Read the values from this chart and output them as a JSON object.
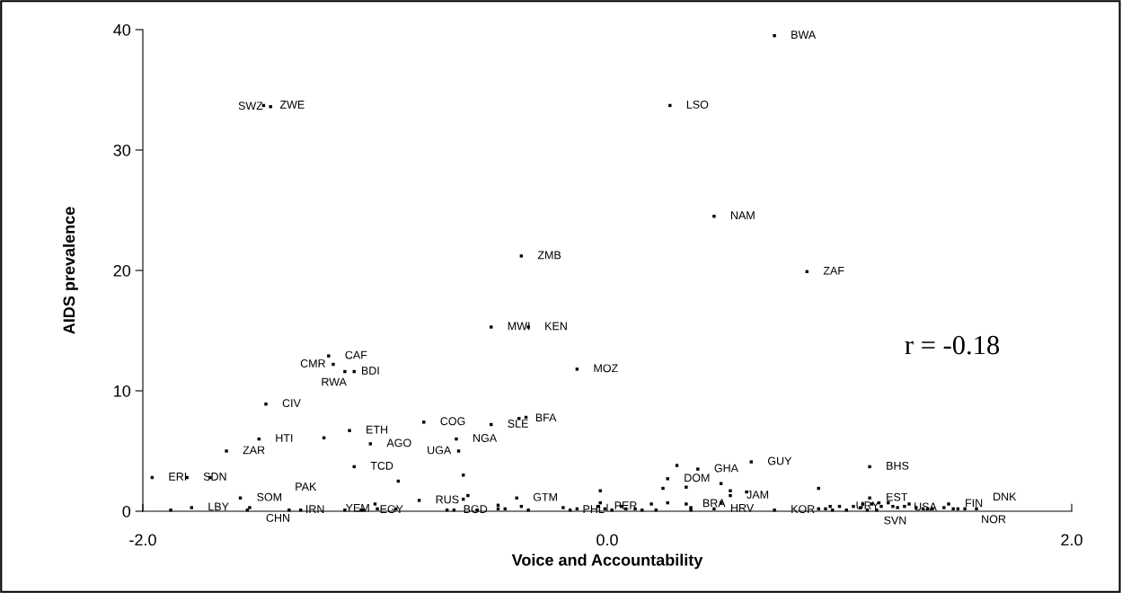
{
  "chart_data": {
    "type": "scatter",
    "xlabel": "Voice and Accountability",
    "ylabel": "AIDS prevalence",
    "xlim": [
      -2,
      2
    ],
    "xticks": [
      {
        "value": -2,
        "label": "-2.0"
      },
      {
        "value": 0,
        "label": "0.0"
      },
      {
        "value": 2,
        "label": "2.0"
      }
    ],
    "ylim": [
      0,
      40
    ],
    "yticks": [
      0,
      10,
      20,
      30,
      40
    ],
    "grid": false,
    "legend": false,
    "marker": "square",
    "series": [
      {
        "color": "#000000",
        "x": [
          0.72,
          0.27,
          0.46,
          0.86,
          -0.37,
          -0.5,
          -0.34,
          -0.13,
          -1.48,
          -1.45,
          -1.2,
          -1.18,
          -1.13,
          -1.09,
          -1.47,
          -1.5,
          -1.64,
          -1.96,
          -1.81,
          -1.58,
          -1.79,
          -1.54,
          -1.37,
          -1.32,
          -1.11,
          -1.02,
          -1.09,
          -0.79,
          -0.65,
          -0.64,
          -0.81,
          -1.05,
          -0.99,
          -0.69,
          -0.5,
          -0.38,
          -0.39,
          -0.04,
          0.02,
          0.26,
          0.39,
          0.34,
          0.53,
          0.46,
          0.62,
          0.72,
          1.13,
          1.13,
          1.0,
          1.12,
          1.25,
          1.47,
          1.54,
          1.59,
          -1.71,
          -1.22,
          -0.9,
          -0.62,
          -0.62,
          -0.6,
          -0.35,
          -1.88,
          -1.55,
          -1.13,
          -1.06,
          -0.91,
          -0.66,
          -0.56,
          -0.47,
          -0.47,
          -1.0,
          -0.44,
          -0.37,
          -0.34,
          -0.19,
          -0.16,
          -0.13,
          -0.03,
          -0.03,
          -0.01,
          0.06,
          0.08,
          0.12,
          0.15,
          0.19,
          0.21,
          0.24,
          0.26,
          0.3,
          0.34,
          0.36,
          0.36,
          0.49,
          0.49,
          0.53,
          0.6,
          0.91,
          0.91,
          0.94,
          0.96,
          0.97,
          1.03,
          1.06,
          1.09,
          1.1,
          1.14,
          1.16,
          1.17,
          1.18,
          1.21,
          1.23,
          1.28,
          1.3,
          1.33,
          1.36,
          1.38,
          1.4,
          1.45,
          1.49,
          1.51
        ],
        "values": [
          39.5,
          33.7,
          24.5,
          19.9,
          21.2,
          15.3,
          15.3,
          11.8,
          33.7,
          33.6,
          12.9,
          12.2,
          11.6,
          11.6,
          8.9,
          6.0,
          5.0,
          2.8,
          2.8,
          1.1,
          0.3,
          0.3,
          0.1,
          0.1,
          6.7,
          5.6,
          3.7,
          7.4,
          6.0,
          5.0,
          0.9,
          0.1,
          0.2,
          0.1,
          7.2,
          7.7,
          1.1,
          0.4,
          0.1,
          2.7,
          3.5,
          0.6,
          1.3,
          0.2,
          4.1,
          0.1,
          3.7,
          1.1,
          0.4,
          0.1,
          0.3,
          0.6,
          0.2,
          0.2,
          2.8,
          6.1,
          2.5,
          3.0,
          1.0,
          1.3,
          7.8,
          0.1,
          0.1,
          0.1,
          0.1,
          0.2,
          0.1,
          0.1,
          0.5,
          0.2,
          0.6,
          0.2,
          0.4,
          0.1,
          0.3,
          0.1,
          0.2,
          0.7,
          1.7,
          0.2,
          0.4,
          0.2,
          0.2,
          0.1,
          0.6,
          0.1,
          1.9,
          0.7,
          3.8,
          2.0,
          0.3,
          0.1,
          2.3,
          0.7,
          1.7,
          1.6,
          1.9,
          0.2,
          0.2,
          0.4,
          0.1,
          0.1,
          0.4,
          0.3,
          0.6,
          0.6,
          0.1,
          0.7,
          0.4,
          0.7,
          0.4,
          0.4,
          0.6,
          0.3,
          0.2,
          0.2,
          0.2,
          0.3,
          0.2,
          0.2
        ]
      }
    ],
    "annotations": [
      {
        "text": "BWA",
        "x": 0.72,
        "y": 39.5
      },
      {
        "text": "LSO",
        "x": 0.27,
        "y": 33.7
      },
      {
        "text": "NAM",
        "x": 0.46,
        "y": 24.5
      },
      {
        "text": "ZAF",
        "x": 0.86,
        "y": 19.9
      },
      {
        "text": "ZMB",
        "x": -0.37,
        "y": 21.2
      },
      {
        "text": "MWI",
        "x": -0.5,
        "y": 15.3
      },
      {
        "text": "KEN",
        "x": -0.34,
        "y": 15.3
      },
      {
        "text": "MOZ",
        "x": -0.13,
        "y": 11.8
      },
      {
        "text": "ZWE",
        "x": -1.48,
        "y": 33.7
      },
      {
        "text": "SWZ",
        "x": -1.45,
        "y": 33.6
      },
      {
        "text": "CAF",
        "x": -1.2,
        "y": 12.9
      },
      {
        "text": "CMR",
        "x": -1.18,
        "y": 12.2
      },
      {
        "text": "BDI",
        "x": -1.13,
        "y": 11.6
      },
      {
        "text": "RWA",
        "x": -1.09,
        "y": 11.6
      },
      {
        "text": "CIV",
        "x": -1.47,
        "y": 8.9
      },
      {
        "text": "HTI",
        "x": -1.5,
        "y": 6.0
      },
      {
        "text": "ZAR",
        "x": -1.64,
        "y": 5.0
      },
      {
        "text": "ERI",
        "x": -1.96,
        "y": 2.8
      },
      {
        "text": "SDN",
        "x": -1.81,
        "y": 2.8
      },
      {
        "text": "SOM",
        "x": -1.58,
        "y": 1.1
      },
      {
        "text": "LBY",
        "x": -1.79,
        "y": 0.3
      },
      {
        "text": "CHN",
        "x": -1.54,
        "y": 0.3
      },
      {
        "text": "IRN",
        "x": -1.37,
        "y": 0.1
      },
      {
        "text": "PAK",
        "x": -1.32,
        "y": 0.1
      },
      {
        "text": "ETH",
        "x": -1.11,
        "y": 6.7
      },
      {
        "text": "AGO",
        "x": -1.02,
        "y": 5.6
      },
      {
        "text": "TCD",
        "x": -1.09,
        "y": 3.7
      },
      {
        "text": "COG",
        "x": -0.79,
        "y": 7.4
      },
      {
        "text": "NGA",
        "x": -0.65,
        "y": 6.0
      },
      {
        "text": "UGA",
        "x": -0.64,
        "y": 5.0
      },
      {
        "text": "RUS",
        "x": -0.81,
        "y": 0.9
      },
      {
        "text": "EGY",
        "x": -1.05,
        "y": 0.1
      },
      {
        "text": "YEM",
        "x": -0.99,
        "y": 0.2
      },
      {
        "text": "BGD",
        "x": -0.69,
        "y": 0.1
      },
      {
        "text": "SLE",
        "x": -0.5,
        "y": 7.2
      },
      {
        "text": "BFA",
        "x": -0.38,
        "y": 7.7
      },
      {
        "text": "GTM",
        "x": -0.39,
        "y": 1.1
      },
      {
        "text": "PER",
        "x": -0.04,
        "y": 0.4
      },
      {
        "text": "PHL",
        "x": 0.02,
        "y": 0.1
      },
      {
        "text": "DOM",
        "x": 0.26,
        "y": 2.7
      },
      {
        "text": "GHA",
        "x": 0.39,
        "y": 3.5
      },
      {
        "text": "BRA",
        "x": 0.34,
        "y": 0.6
      },
      {
        "text": "JAM",
        "x": 0.53,
        "y": 1.3
      },
      {
        "text": "HRV",
        "x": 0.46,
        "y": 0.2
      },
      {
        "text": "GUY",
        "x": 0.62,
        "y": 4.1
      },
      {
        "text": "KOR",
        "x": 0.72,
        "y": 0.1
      },
      {
        "text": "BHS",
        "x": 1.13,
        "y": 3.7
      },
      {
        "text": "EST",
        "x": 1.13,
        "y": 1.1
      },
      {
        "text": "URY",
        "x": 1.0,
        "y": 0.4
      },
      {
        "text": "SVN",
        "x": 1.12,
        "y": 0.1
      },
      {
        "text": "USA",
        "x": 1.25,
        "y": 0.3
      },
      {
        "text": "FIN",
        "x": 1.47,
        "y": 0.6
      },
      {
        "text": "NOR",
        "x": 1.54,
        "y": 0.2
      },
      {
        "text": "DNK",
        "x": 1.59,
        "y": 0.2
      },
      "r = -0.18"
    ]
  }
}
